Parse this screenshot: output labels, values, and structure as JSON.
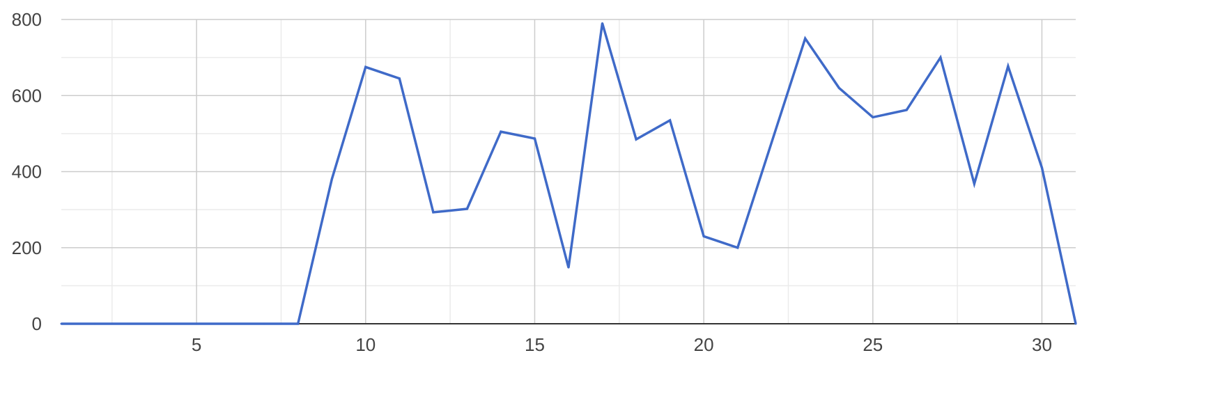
{
  "chart_data": {
    "type": "line",
    "title": "",
    "xlabel": "",
    "ylabel": "",
    "xlim": [
      1,
      31
    ],
    "ylim": [
      0,
      800
    ],
    "x_ticks": [
      5,
      10,
      15,
      20,
      25,
      30
    ],
    "x_tick_labels": [
      "5",
      "10",
      "15",
      "20",
      "25",
      "30"
    ],
    "x_minor_ticks": [
      2.5,
      7.5,
      12.5,
      17.5,
      22.5,
      27.5
    ],
    "y_ticks": [
      0,
      200,
      400,
      600,
      800
    ],
    "y_tick_labels": [
      "0",
      "200",
      "400",
      "600",
      "800"
    ],
    "y_minor_ticks": [
      100,
      300,
      500,
      700
    ],
    "grid": true,
    "legend": "none",
    "colors": {
      "line": "#3f6ac8",
      "major_grid": "#cccccc",
      "minor_grid": "#ebebeb",
      "baseline": "#333333"
    },
    "series": [
      {
        "x": [
          1,
          2,
          3,
          4,
          5,
          6,
          7,
          8,
          9,
          10,
          11,
          12,
          13,
          14,
          15,
          16,
          17,
          18,
          19,
          20,
          21,
          22,
          23,
          24,
          25,
          26,
          27,
          28,
          29,
          30,
          31
        ],
        "values": [
          0,
          0,
          0,
          0,
          0,
          0,
          0,
          0,
          380,
          675,
          645,
          293,
          302,
          505,
          487,
          148,
          790,
          485,
          535,
          230,
          200,
          475,
          750,
          620,
          543,
          562,
          700,
          368,
          677,
          410,
          0
        ]
      }
    ]
  }
}
